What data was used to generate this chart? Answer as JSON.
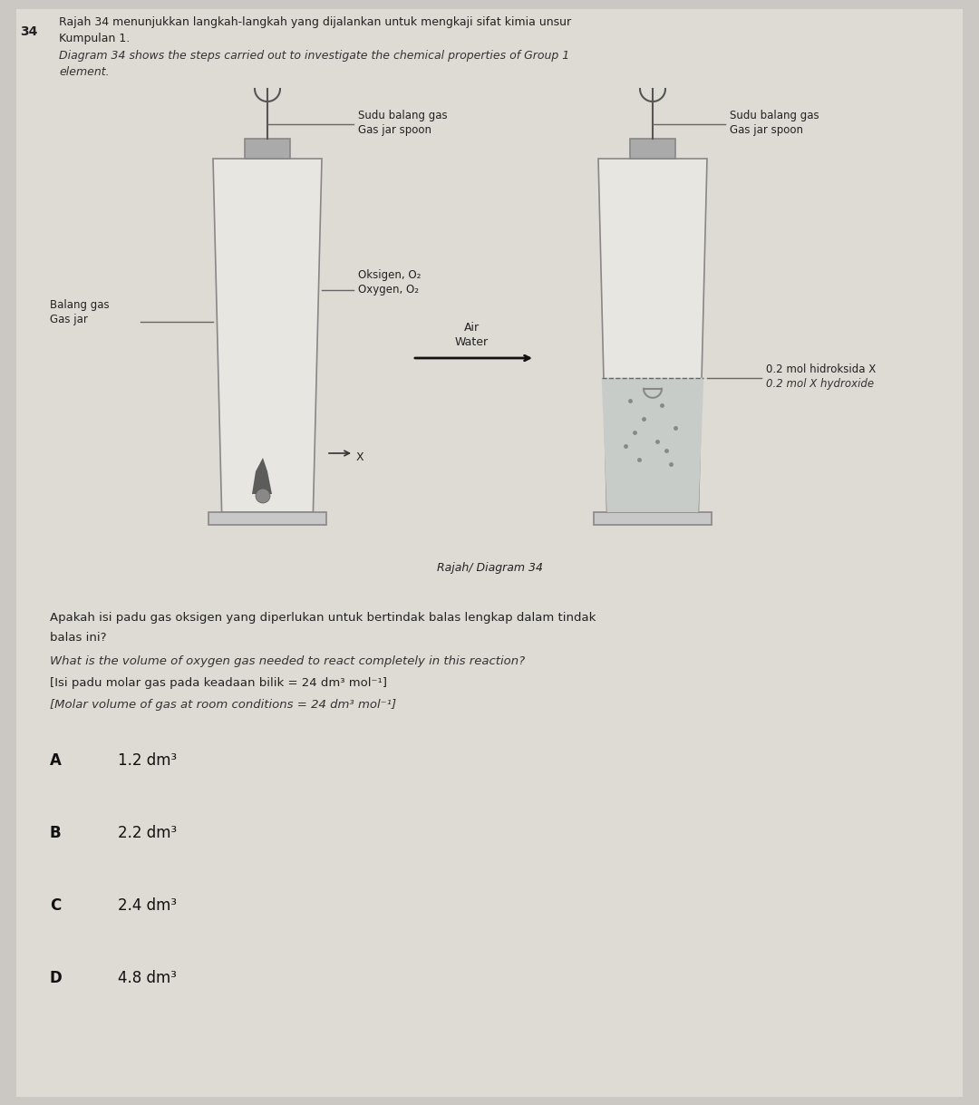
{
  "bg_color": "#cbc8c3",
  "paper_color": "#dedad4",
  "title_num": "34",
  "header_text_malay": "Rajah 34 menunjukkan langkah-langkah yang dijalankan untuk mengkaji sifat kimia unsur\nKumpulan 1.",
  "header_text_english": "Diagram 34 shows the steps carried out to investigate the chemical properties of Group 1\nelement.",
  "diagram_caption": "Rajah/ Diagram 34",
  "label_balang_gas_malay": "Balang gas",
  "label_balang_gas_english": "Gas jar",
  "label_spoon_malay_1": "Sudu balang gas",
  "label_spoon_english_1": "Gas jar spoon",
  "label_spoon_malay_2": "Sudu balang gas",
  "label_spoon_english_2": "Gas jar spoon",
  "label_oxygen_malay": "Oksigen, O₂",
  "label_oxygen_english": "Oxygen, O₂",
  "label_water_malay": "Air",
  "label_water_english": "Water",
  "label_hydroxide_malay": "0.2 mol hidroksida X",
  "label_hydroxide_english": "0.2 mol X hydroxide",
  "label_x": "X",
  "question_malay_1": "Apakah isi padu gas oksigen yang diperlukan untuk bertindak balas lengkap dalam tindak",
  "question_malay_2": "balas ini?",
  "question_english": "What is the volume of oxygen gas needed to react completely in this reaction?",
  "given_malay": "[Isi padu molar gas pada keadaan bilik = 24 dm³ mol⁻¹]",
  "given_english": "[Molar volume of gas at room conditions = 24 dm³ mol⁻¹]",
  "options": [
    {
      "letter": "A",
      "value": "1.2 dm³"
    },
    {
      "letter": "B",
      "value": "2.2 dm³"
    },
    {
      "letter": "C",
      "value": "2.4 dm³"
    },
    {
      "letter": "D",
      "value": "4.8 dm³"
    }
  ],
  "jar_color": "#e8e6e0",
  "jar_edge_color": "#888888",
  "stopper_color": "#aaaaaa",
  "water_color": "#c8ccc8",
  "hook_color": "#555555"
}
